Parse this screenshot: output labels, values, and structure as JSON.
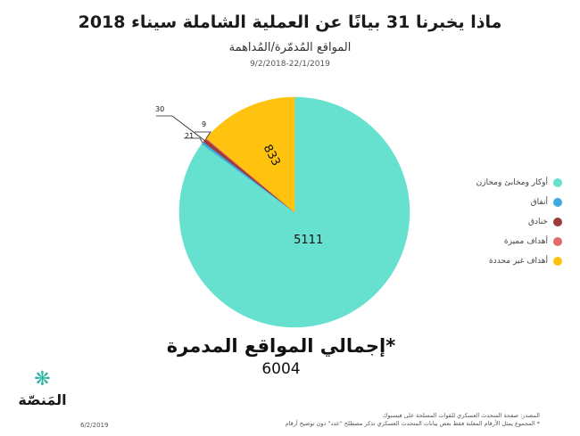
{
  "header": {
    "title": "ماذا يخبرنا 31 بيانًا عن العملية الشاملة سيناء 2018",
    "subtitle": "المواقع المُدمّرة/المُداهمة",
    "date_range": "9/2/2018-22/1/2019"
  },
  "chart_data": {
    "type": "pie",
    "title": "",
    "slices": [
      {
        "label": "أوكار ومخابئ ومخازن",
        "value": 5111,
        "color": "#66E0CF"
      },
      {
        "label": "أنفاق",
        "value": 21,
        "color": "#3FA9E0"
      },
      {
        "label": "خنادق",
        "value": 30,
        "color": "#9E3B3B"
      },
      {
        "label": "أهداف مميزة",
        "value": 9,
        "color": "#E06B6B"
      },
      {
        "label": "أهداف غير محددة",
        "value": 833,
        "color": "#FFC20E"
      }
    ],
    "legend_position": "right"
  },
  "total": {
    "label": "إجمالي المواقع المدمرة",
    "marker": "*",
    "value": "6004"
  },
  "logo": {
    "text": "المَنصّة",
    "icon": "snowflake-icon"
  },
  "footer": {
    "date": "6/2/2019",
    "source_line1": "المصدر: صفحة المتحدث العسكري للقوات المسلحة على فيسبوك",
    "source_line2": "* المجموع يمثل الأرقام المعلنة فقط بعض بيانات المتحدث العسكري تذكر مصطلح \"عدد\" دون توضيح أرقام"
  }
}
